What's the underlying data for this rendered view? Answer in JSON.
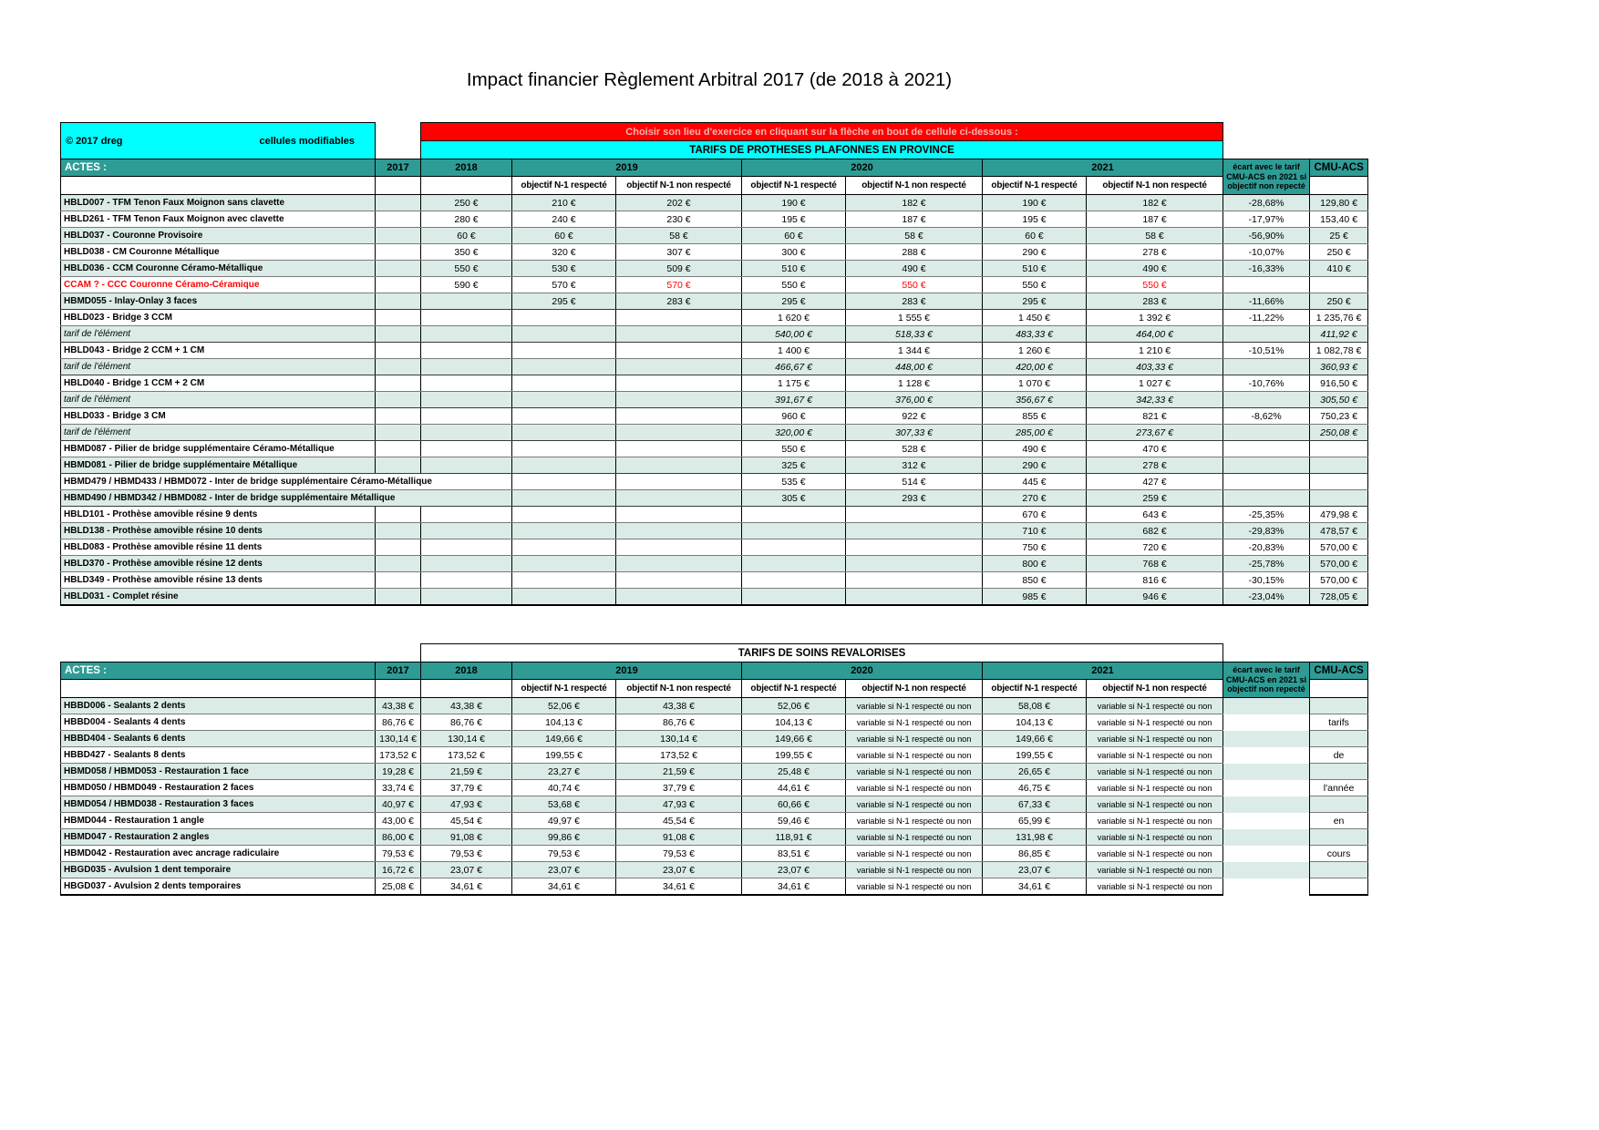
{
  "title": "Impact financier Règlement Arbitral 2017 (de 2018 à 2021)",
  "colors": {
    "teal": "#2E9C94",
    "row_tint": "#DBECE8",
    "cyan": "#00FFFF",
    "banner_red_bg": "#FF0000",
    "alert_text": "#FF0000"
  },
  "columns": {
    "actes": "ACTES :",
    "years": [
      "2017",
      "2018",
      "2019",
      "2020",
      "2021"
    ],
    "sub_respecte": "objectif N-1 respecté",
    "sub_non_respecte": "objectif N-1 non respecté",
    "ecart_header": "écart avec le tarif\nCMU-ACS en 2021 si\nobjectif non repecté",
    "cmu": "CMU-ACS"
  },
  "table1": {
    "copyright": "© 2017 dreg",
    "note": "cellules modifiables",
    "banner_red": "Choisir son lieu d'exercice en cliquant sur la flèche en bout de cellule ci-dessous :",
    "banner_cyan": "TARIFS DE PROTHESES PLAFONNES EN PROVINCE",
    "rows": [
      {
        "label": "HBLD007 - TFM Tenon Faux Moignon sans clavette",
        "cells": [
          "",
          "250 €",
          "210 €",
          "202 €",
          "190 €",
          "182 €",
          "190 €",
          "182 €",
          "-28,68%",
          "129,80 €"
        ]
      },
      {
        "label": "HBLD261 - TFM Tenon Faux Moignon avec clavette",
        "cells": [
          "",
          "280 €",
          "240 €",
          "230 €",
          "195 €",
          "187 €",
          "195 €",
          "187 €",
          "-17,97%",
          "153,40 €"
        ]
      },
      {
        "label": "HBLD037 - Couronne Provisoire",
        "cells": [
          "",
          "60 €",
          "60 €",
          "58 €",
          "60 €",
          "58 €",
          "60 €",
          "58 €",
          "-56,90%",
          "25 €"
        ]
      },
      {
        "label": "HBLD038 - CM Couronne Métallique",
        "cells": [
          "",
          "350 €",
          "320 €",
          "307 €",
          "300 €",
          "288 €",
          "290 €",
          "278 €",
          "-10,07%",
          "250 €"
        ]
      },
      {
        "label": "HBLD036 - CCM Couronne Céramo-Métallique",
        "cells": [
          "",
          "550 €",
          "530 €",
          "509 €",
          "510 €",
          "490 €",
          "510 €",
          "490 €",
          "-16,33%",
          "410 €"
        ]
      },
      {
        "label": "CCAM ? - CCC Couronne Céramo-Céramique",
        "style": "alert",
        "red_cells": [
          3,
          5,
          7
        ],
        "cells": [
          "",
          "590 €",
          "570 €",
          "570 €",
          "550 €",
          "550 €",
          "550 €",
          "550 €",
          "",
          ""
        ]
      },
      {
        "label": "HBMD055 - Inlay-Onlay 3 faces",
        "sep": true,
        "cells": [
          "",
          "",
          "295 €",
          "283 €",
          "295 €",
          "283 €",
          "295 €",
          "283 €",
          "-11,66%",
          "250 €"
        ]
      },
      {
        "label": "HBLD023 - Bridge 3 CCM",
        "cells": [
          "",
          "",
          "",
          "",
          "1 620 €",
          "1 555 €",
          "1 450 €",
          "1 392 €",
          "-11,22%",
          "1 235,76 €"
        ]
      },
      {
        "label": "tarif de l'élément",
        "style": "tarif",
        "sep": true,
        "cells": [
          "",
          "",
          "",
          "",
          "540,00 €",
          "518,33 €",
          "483,33 €",
          "464,00 €",
          "",
          "411,92 €"
        ]
      },
      {
        "label": "HBLD043 - Bridge 2 CCM + 1 CM",
        "cells": [
          "",
          "",
          "",
          "",
          "1 400 €",
          "1 344 €",
          "1 260 €",
          "1 210 €",
          "-10,51%",
          "1 082,78 €"
        ]
      },
      {
        "label": "tarif de l'élément",
        "style": "tarif",
        "sep": true,
        "cells": [
          "",
          "",
          "",
          "",
          "466,67 €",
          "448,00 €",
          "420,00 €",
          "403,33 €",
          "",
          "360,93 €"
        ]
      },
      {
        "label": "HBLD040 - Bridge 1 CCM + 2 CM",
        "cells": [
          "",
          "",
          "",
          "",
          "1 175 €",
          "1 128 €",
          "1 070 €",
          "1 027 €",
          "-10,76%",
          "916,50 €"
        ]
      },
      {
        "label": "tarif de l'élément",
        "style": "tarif",
        "sep": true,
        "cells": [
          "",
          "",
          "",
          "",
          "391,67 €",
          "376,00 €",
          "356,67 €",
          "342,33 €",
          "",
          "305,50 €"
        ]
      },
      {
        "label": "HBLD033 - Bridge 3 CM",
        "cells": [
          "",
          "",
          "",
          "",
          "960 €",
          "922 €",
          "855 €",
          "821 €",
          "-8,62%",
          "750,23 €"
        ]
      },
      {
        "label": "tarif de l'élément",
        "style": "tarif",
        "sep": true,
        "cells": [
          "",
          "",
          "",
          "",
          "320,00 €",
          "307,33 €",
          "285,00 €",
          "273,67 €",
          "",
          "250,08 €"
        ]
      },
      {
        "label": "HBMD087 - Pilier de bridge supplémentaire Céramo-Métallique",
        "cells": [
          "",
          "",
          "",
          "",
          "550 €",
          "528 €",
          "490 €",
          "470 €",
          "",
          ""
        ]
      },
      {
        "label": "HBMD081 - Pilier de bridge supplémentaire Métallique",
        "sep": true,
        "cells": [
          "",
          "",
          "",
          "",
          "325 €",
          "312 €",
          "290 €",
          "278 €",
          "",
          ""
        ]
      },
      {
        "label": "HBMD479 / HBMD433 / HBMD072 - Inter de bridge supplémentaire Céramo-Métallique",
        "wide": true,
        "cells": [
          "",
          "",
          "",
          "",
          "535 €",
          "514 €",
          "445 €",
          "427 €",
          "",
          ""
        ]
      },
      {
        "label": "HBMD490 / HBMD342 / HBMD082 - Inter de bridge supplémentaire Métallique",
        "wide": true,
        "sep": true,
        "cells": [
          "",
          "",
          "",
          "",
          "305 €",
          "293 €",
          "270 €",
          "259 €",
          "",
          ""
        ]
      },
      {
        "label": "HBLD101 - Prothèse amovible résine 9 dents",
        "cells": [
          "",
          "",
          "",
          "",
          "",
          "",
          "670 €",
          "643 €",
          "-25,35%",
          "479,98 €"
        ]
      },
      {
        "label": "HBLD138 - Prothèse amovible résine 10 dents",
        "cells": [
          "",
          "",
          "",
          "",
          "",
          "",
          "710 €",
          "682 €",
          "-29,83%",
          "478,57 €"
        ]
      },
      {
        "label": "HBLD083 - Prothèse amovible résine 11 dents",
        "cells": [
          "",
          "",
          "",
          "",
          "",
          "",
          "750 €",
          "720 €",
          "-20,83%",
          "570,00 €"
        ]
      },
      {
        "label": "HBLD370 - Prothèse amovible résine 12 dents",
        "cells": [
          "",
          "",
          "",
          "",
          "",
          "",
          "800 €",
          "768 €",
          "-25,78%",
          "570,00 €"
        ]
      },
      {
        "label": "HBLD349 - Prothèse amovible résine 13 dents",
        "cells": [
          "",
          "",
          "",
          "",
          "",
          "",
          "850 €",
          "816 €",
          "-30,15%",
          "570,00 €"
        ]
      },
      {
        "label": "HBLD031 - Complet résine",
        "cells": [
          "",
          "",
          "",
          "",
          "",
          "",
          "985 €",
          "946 €",
          "-23,04%",
          "728,05 €"
        ]
      }
    ]
  },
  "table2": {
    "banner": "TARIFS DE SOINS REVALORISES",
    "rows": [
      {
        "label": "HBBD006 - Sealants 2 dents",
        "cells": [
          "43,38 €",
          "43,38 €",
          "52,06 €",
          "43,38 €",
          "52,06 €",
          "variable si N-1 respecté ou non",
          "58,08 €",
          "variable si N-1 respecté ou non",
          "",
          ""
        ]
      },
      {
        "label": "HBBD004 - Sealants 4 dents",
        "cells": [
          "86,76 €",
          "86,76 €",
          "104,13 €",
          "86,76 €",
          "104,13 €",
          "variable si N-1 respecté ou non",
          "104,13 €",
          "variable si N-1 respecté ou non",
          "",
          "tarifs"
        ]
      },
      {
        "label": "HBBD404 - Sealants 6 dents",
        "cells": [
          "130,14 €",
          "130,14 €",
          "149,66 €",
          "130,14 €",
          "149,66 €",
          "variable si N-1 respecté ou non",
          "149,66 €",
          "variable si N-1 respecté ou non",
          "",
          ""
        ]
      },
      {
        "label": "HBBD427 - Sealants 8 dents",
        "cells": [
          "173,52 €",
          "173,52 €",
          "199,55 €",
          "173,52 €",
          "199,55 €",
          "variable si N-1 respecté ou non",
          "199,55 €",
          "variable si N-1 respecté ou non",
          "",
          "de"
        ]
      },
      {
        "label": "HBMD058 / HBMD053 - Restauration 1 face",
        "cells": [
          "19,28 €",
          "21,59 €",
          "23,27 €",
          "21,59 €",
          "25,48 €",
          "variable si N-1 respecté ou non",
          "26,65 €",
          "variable si N-1 respecté ou non",
          "",
          ""
        ]
      },
      {
        "label": "HBMD050 / HBMD049 - Restauration 2 faces",
        "cells": [
          "33,74 €",
          "37,79 €",
          "40,74 €",
          "37,79 €",
          "44,61 €",
          "variable si N-1 respecté ou non",
          "46,75 €",
          "variable si N-1 respecté ou non",
          "",
          "l'année"
        ]
      },
      {
        "label": "HBMD054 / HBMD038 - Restauration 3 faces",
        "cells": [
          "40,97 €",
          "47,93 €",
          "53,68 €",
          "47,93 €",
          "60,66 €",
          "variable si N-1 respecté ou non",
          "67,33 €",
          "variable si N-1 respecté ou non",
          "",
          ""
        ]
      },
      {
        "label": "HBMD044 - Restauration 1 angle",
        "cells": [
          "43,00 €",
          "45,54 €",
          "49,97 €",
          "45,54 €",
          "59,46 €",
          "variable si N-1 respecté ou non",
          "65,99 €",
          "variable si N-1 respecté ou non",
          "",
          "en"
        ]
      },
      {
        "label": "HBMD047 - Restauration 2 angles",
        "cells": [
          "86,00 €",
          "91,08 €",
          "99,86 €",
          "91,08 €",
          "118,91 €",
          "variable si N-1 respecté ou non",
          "131,98 €",
          "variable si N-1 respecté ou non",
          "",
          ""
        ]
      },
      {
        "label": "HBMD042 - Restauration avec ancrage radiculaire",
        "cells": [
          "79,53 €",
          "79,53 €",
          "79,53 €",
          "79,53 €",
          "83,51 €",
          "variable si N-1 respecté ou non",
          "86,85 €",
          "variable si N-1 respecté ou non",
          "",
          "cours"
        ]
      },
      {
        "label": "HBGD035 - Avulsion 1 dent temporaire",
        "cells": [
          "16,72 €",
          "23,07 €",
          "23,07 €",
          "23,07 €",
          "23,07 €",
          "variable si N-1 respecté ou non",
          "23,07 €",
          "variable si N-1 respecté ou non",
          "",
          ""
        ]
      },
      {
        "label": "HBGD037 - Avulsion 2 dents temporaires",
        "cells": [
          "25,08 €",
          "34,61 €",
          "34,61 €",
          "34,61 €",
          "34,61 €",
          "variable si N-1 respecté ou non",
          "34,61 €",
          "variable si N-1 respecté ou non",
          "",
          ""
        ]
      }
    ]
  }
}
